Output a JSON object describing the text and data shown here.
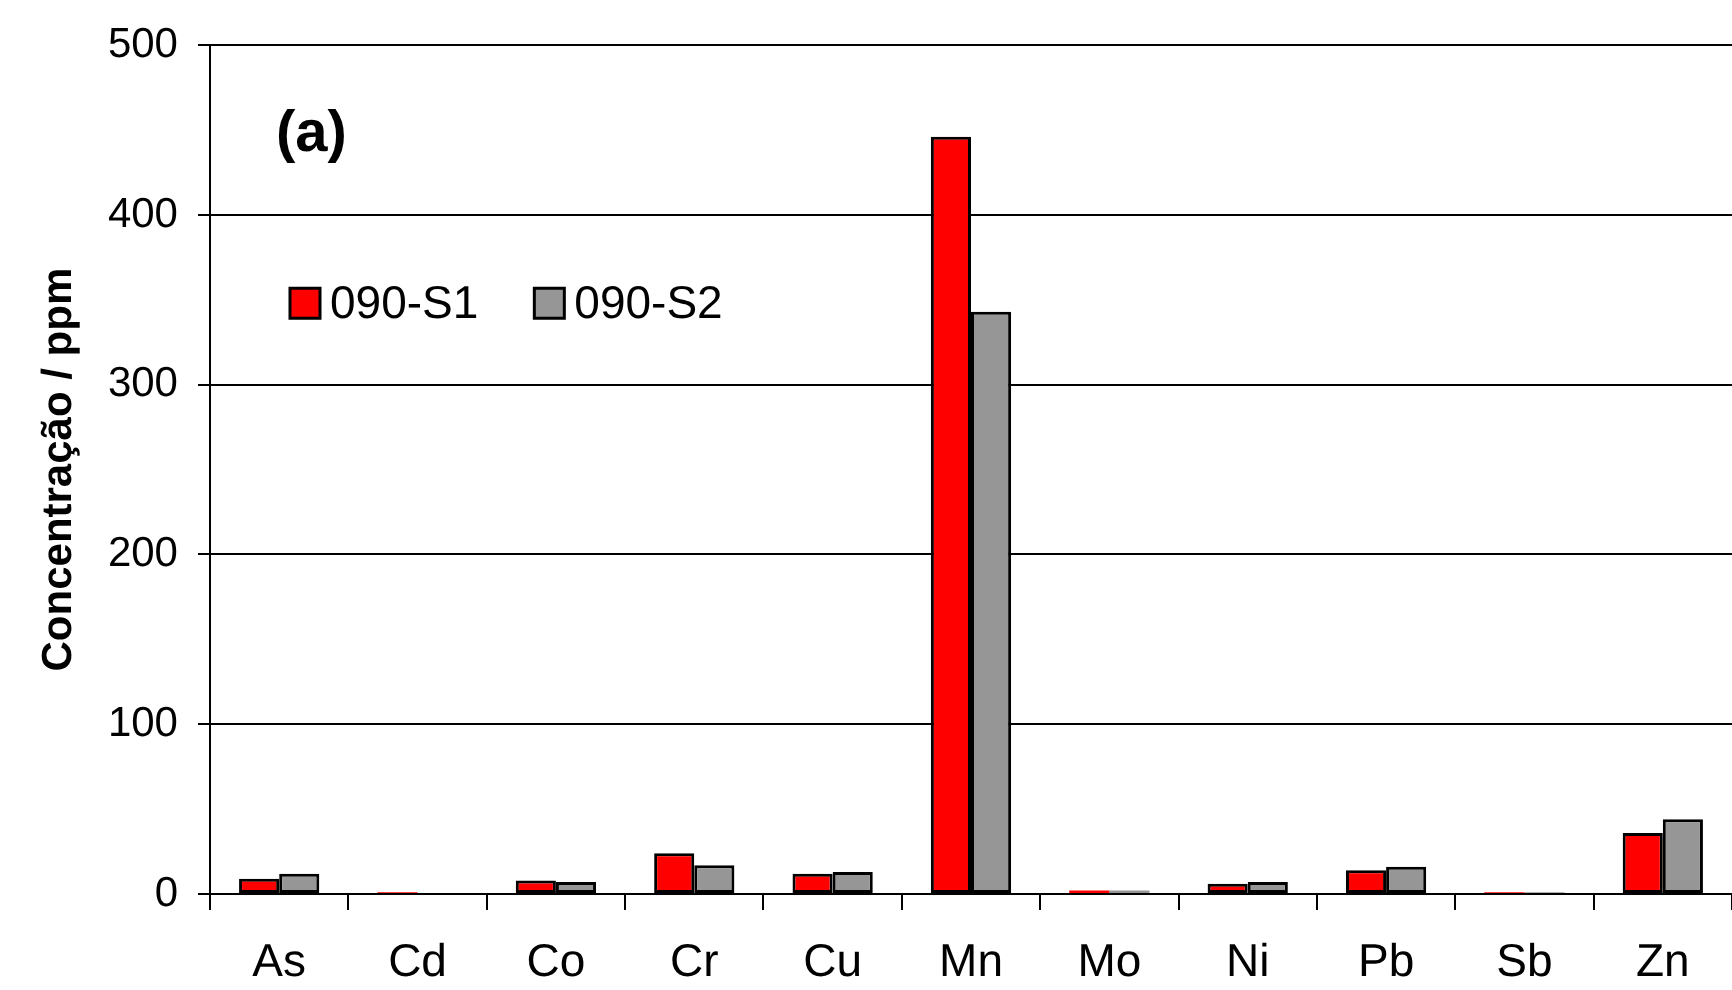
{
  "chart_data": {
    "type": "bar",
    "ylabel": "Concentração / ppm",
    "annotations": [
      "(a)"
    ],
    "categories": [
      "As",
      "Cd",
      "Co",
      "Cr",
      "Cu",
      "Mn",
      "Mo",
      "Ni",
      "Pb",
      "Sb",
      "Zn"
    ],
    "series": [
      {
        "name": "090-S1",
        "color": "#ff0000",
        "values": [
          9,
          1,
          8,
          24,
          12,
          446,
          2,
          6,
          14,
          1,
          36
        ]
      },
      {
        "name": "090-S2",
        "color": "#969696",
        "values": [
          12,
          null,
          7,
          17,
          13,
          343,
          2,
          7,
          16,
          1,
          44
        ]
      }
    ],
    "ylim": [
      0,
      500
    ],
    "yticks": [
      0,
      100,
      200,
      300,
      400,
      500
    ],
    "grid": "y",
    "legend": "top left"
  }
}
